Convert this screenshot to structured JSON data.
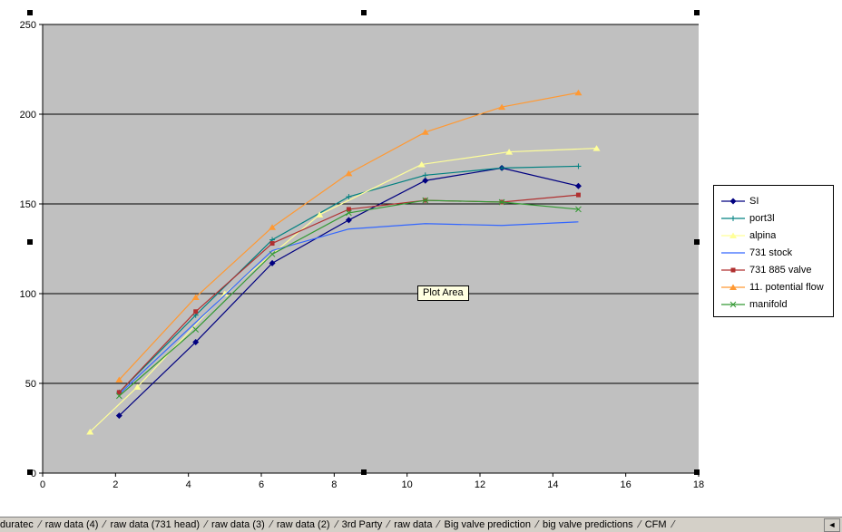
{
  "chart_data": {
    "type": "line",
    "title": "",
    "xlabel": "",
    "ylabel": "",
    "xlim": [
      0,
      18
    ],
    "ylim": [
      0,
      250
    ],
    "xticks": [
      0,
      2,
      4,
      6,
      8,
      10,
      12,
      14,
      16,
      18
    ],
    "yticks": [
      0,
      50,
      100,
      150,
      200,
      250
    ],
    "grid": "horizontal",
    "plot_area_bg": "#c0c0c0",
    "gridline_color": "#000000",
    "legend_position": "right",
    "series": [
      {
        "name": "SI",
        "color": "#000080",
        "marker": "diamond",
        "points": [
          [
            2.1,
            32
          ],
          [
            4.2,
            73
          ],
          [
            6.3,
            117
          ],
          [
            8.4,
            141
          ],
          [
            10.5,
            163
          ],
          [
            12.6,
            170
          ],
          [
            14.7,
            160
          ]
        ]
      },
      {
        "name": "port3l",
        "color": "#008080",
        "marker": "plus",
        "points": [
          [
            2.1,
            45
          ],
          [
            4.2,
            88
          ],
          [
            6.3,
            130
          ],
          [
            8.4,
            154
          ],
          [
            10.5,
            166
          ],
          [
            12.6,
            170
          ],
          [
            14.7,
            171
          ]
        ]
      },
      {
        "name": "alpina",
        "color": "#ffff99",
        "marker": "triangle",
        "points": [
          [
            1.3,
            23
          ],
          [
            2.6,
            48
          ],
          [
            5.0,
            100
          ],
          [
            7.6,
            144
          ],
          [
            10.4,
            172
          ],
          [
            12.8,
            179
          ],
          [
            15.2,
            181
          ]
        ]
      },
      {
        "name": "731 stock",
        "color": "#3366ff",
        "marker": "none",
        "points": [
          [
            2.1,
            44
          ],
          [
            4.2,
            84
          ],
          [
            6.3,
            124
          ],
          [
            8.4,
            136
          ],
          [
            10.5,
            139
          ],
          [
            12.6,
            138
          ],
          [
            14.7,
            140
          ]
        ]
      },
      {
        "name": "731 885 valve",
        "color": "#b03030",
        "marker": "square",
        "points": [
          [
            2.1,
            45
          ],
          [
            4.2,
            90
          ],
          [
            6.3,
            128
          ],
          [
            8.4,
            147
          ],
          [
            10.5,
            152
          ],
          [
            12.6,
            151
          ],
          [
            14.7,
            155
          ]
        ]
      },
      {
        "name": "11. potential flow",
        "color": "#ff9933",
        "marker": "triangle",
        "points": [
          [
            2.1,
            52
          ],
          [
            4.2,
            98
          ],
          [
            6.3,
            137
          ],
          [
            8.4,
            167
          ],
          [
            10.5,
            190
          ],
          [
            12.6,
            204
          ],
          [
            14.7,
            212
          ]
        ]
      },
      {
        "name": "manifold",
        "color": "#339933",
        "marker": "x",
        "points": [
          [
            2.1,
            43
          ],
          [
            4.2,
            80
          ],
          [
            6.3,
            122
          ],
          [
            8.4,
            145
          ],
          [
            10.5,
            152
          ],
          [
            12.6,
            151
          ],
          [
            14.7,
            147
          ]
        ]
      }
    ]
  },
  "tooltip": {
    "text": "Plot Area"
  },
  "sheet_tabs": [
    "duratec",
    "raw data (4)",
    "raw data (731 head)",
    "raw data (3)",
    "raw data (2)",
    "3rd Party",
    "raw data",
    "Big valve prediction",
    "big valve predictions",
    "CFM"
  ],
  "tab_scroll": {
    "left_arrow": "◄"
  }
}
